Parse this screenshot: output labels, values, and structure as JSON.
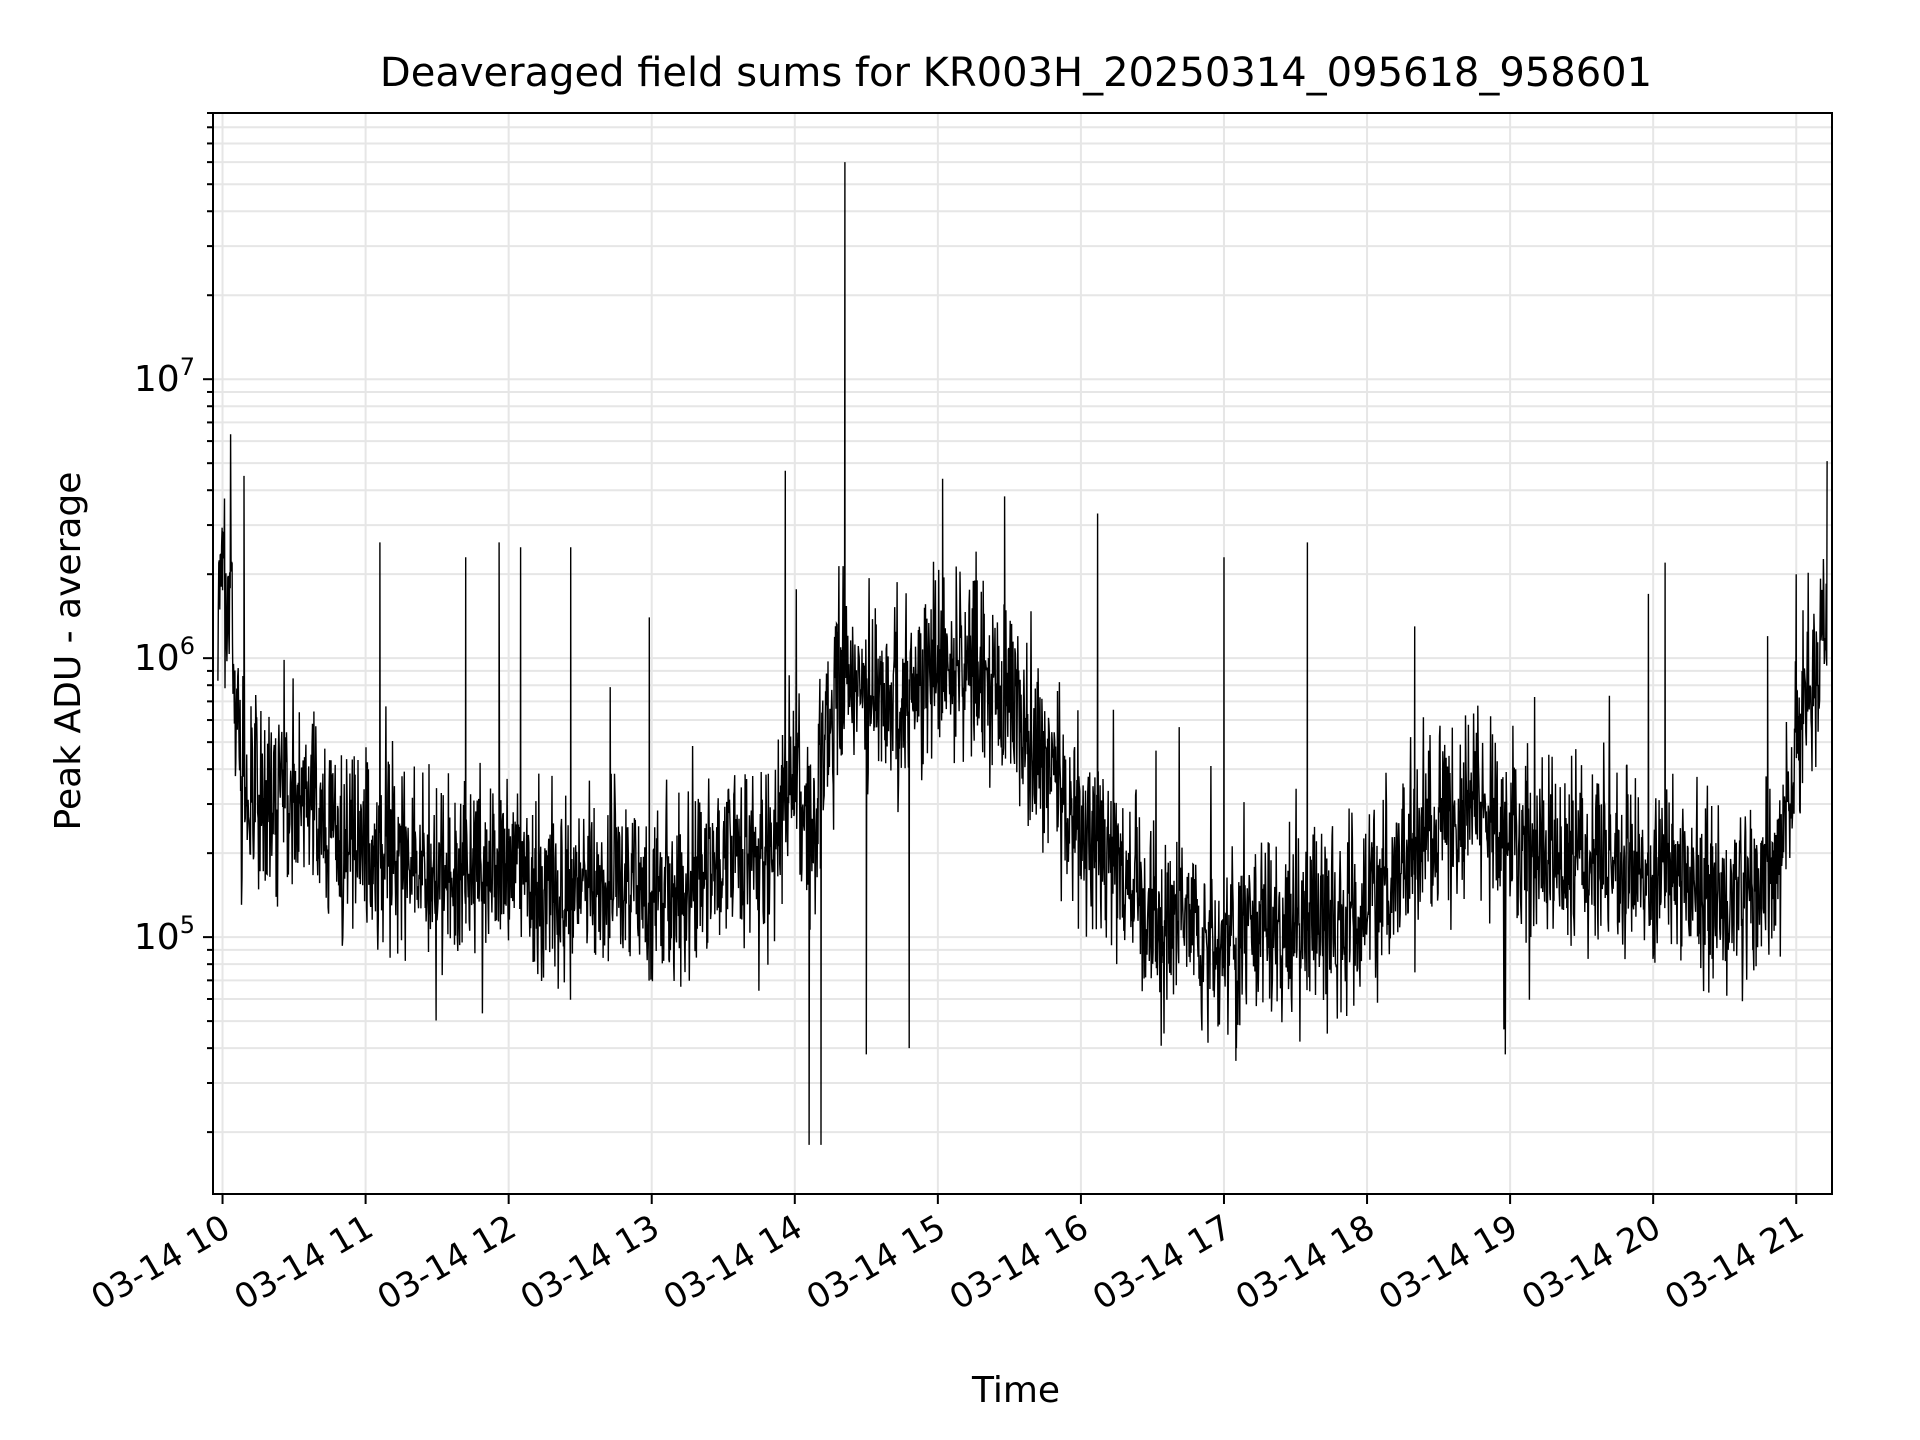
{
  "chart_data": {
    "type": "line",
    "title": "Deaveraged field sums for KR003H_20250314_095618_958601",
    "xlabel": "Time",
    "ylabel": "Peak ADU - average",
    "yscale": "log",
    "ylim": [
      12000,
      90000000
    ],
    "xlim": [
      "2025-03-14T09:56",
      "2025-03-14T21:15"
    ],
    "grid": true,
    "line_color": "#000000",
    "grid_color": "#e6e6e6",
    "x_tick_labels": [
      "03-14 10",
      "03-14 11",
      "03-14 12",
      "03-14 13",
      "03-14 14",
      "03-14 15",
      "03-14 16",
      "03-14 17",
      "03-14 18",
      "03-14 19",
      "03-14 20",
      "03-14 21"
    ],
    "x_tick_times": [
      "2025-03-14T10:00",
      "2025-03-14T11:00",
      "2025-03-14T12:00",
      "2025-03-14T13:00",
      "2025-03-14T14:00",
      "2025-03-14T15:00",
      "2025-03-14T16:00",
      "2025-03-14T17:00",
      "2025-03-14T18:00",
      "2025-03-14T19:00",
      "2025-03-14T20:00",
      "2025-03-14T21:00"
    ],
    "y_ticks": [
      {
        "value": 100000,
        "base": "10",
        "exponent": "5"
      },
      {
        "value": 1000000,
        "base": "10",
        "exponent": "6"
      },
      {
        "value": 10000000,
        "base": "10",
        "exponent": "7"
      }
    ],
    "series": [
      {
        "x": [
          "2025-03-14T09:56",
          "2025-03-14T10:04",
          "2025-03-14T10:05",
          "2025-03-14T10:08",
          "2025-03-14T10:30",
          "2025-03-14T10:45",
          "2025-03-14T11:10",
          "2025-03-14T11:30",
          "2025-03-14T11:50",
          "2025-03-14T12:10",
          "2025-03-14T12:30",
          "2025-03-14T12:45",
          "2025-03-14T13:00",
          "2025-03-14T13:15",
          "2025-03-14T13:30",
          "2025-03-14T13:50",
          "2025-03-14T13:58",
          "2025-03-14T14:07",
          "2025-03-14T14:10",
          "2025-03-14T14:20",
          "2025-03-14T14:30",
          "2025-03-14T14:45",
          "2025-03-14T15:00",
          "2025-03-14T15:15",
          "2025-03-14T15:30",
          "2025-03-14T15:42",
          "2025-03-14T15:55",
          "2025-03-14T16:10",
          "2025-03-14T16:30",
          "2025-03-14T16:50",
          "2025-03-14T17:10",
          "2025-03-14T17:30",
          "2025-03-14T17:50",
          "2025-03-14T18:10",
          "2025-03-14T18:30",
          "2025-03-14T18:50",
          "2025-03-14T19:10",
          "2025-03-14T19:30",
          "2025-03-14T19:50",
          "2025-03-14T20:10",
          "2025-03-14T20:30",
          "2025-03-14T20:50",
          "2025-03-14T21:00",
          "2025-03-14T21:10"
        ],
        "y": [
          1600000,
          1500000,
          700000,
          350000,
          300000,
          250000,
          200000,
          170000,
          180000,
          170000,
          140000,
          170000,
          130000,
          150000,
          200000,
          190000,
          400000,
          220000,
          350000,
          1000000,
          800000,
          700000,
          1000000,
          900000,
          700000,
          500000,
          300000,
          200000,
          110000,
          100000,
          100000,
          110000,
          110000,
          150000,
          250000,
          300000,
          180000,
          200000,
          170000,
          160000,
          130000,
          150000,
          500000,
          1100000
        ],
        "spikes": [
          {
            "x": "2025-03-14T10:09",
            "y": 4500000
          },
          {
            "x": "2025-03-14T11:06",
            "y": 2600000
          },
          {
            "x": "2025-03-14T11:42",
            "y": 2300000
          },
          {
            "x": "2025-03-14T11:56",
            "y": 2600000
          },
          {
            "x": "2025-03-14T12:05",
            "y": 2500000
          },
          {
            "x": "2025-03-14T12:26",
            "y": 2500000
          },
          {
            "x": "2025-03-14T12:59",
            "y": 1400000
          },
          {
            "x": "2025-03-14T13:56",
            "y": 4700000
          },
          {
            "x": "2025-03-14T14:06",
            "y": 18000
          },
          {
            "x": "2025-03-14T14:11",
            "y": 18000
          },
          {
            "x": "2025-03-14T14:21",
            "y": 60000000
          },
          {
            "x": "2025-03-14T14:30",
            "y": 38000
          },
          {
            "x": "2025-03-14T14:48",
            "y": 40000
          },
          {
            "x": "2025-03-14T15:02",
            "y": 4400000
          },
          {
            "x": "2025-03-14T15:28",
            "y": 3800000
          },
          {
            "x": "2025-03-14T16:07",
            "y": 3300000
          },
          {
            "x": "2025-03-14T17:00",
            "y": 2300000
          },
          {
            "x": "2025-03-14T17:05",
            "y": 36000
          },
          {
            "x": "2025-03-14T17:35",
            "y": 2600000
          },
          {
            "x": "2025-03-14T18:20",
            "y": 1300000
          },
          {
            "x": "2025-03-14T18:58",
            "y": 38000
          },
          {
            "x": "2025-03-14T19:58",
            "y": 1700000
          },
          {
            "x": "2025-03-14T20:05",
            "y": 2200000
          },
          {
            "x": "2025-03-14T20:48",
            "y": 1200000
          },
          {
            "x": "2025-03-14T21:00",
            "y": 2000000
          }
        ]
      }
    ]
  }
}
